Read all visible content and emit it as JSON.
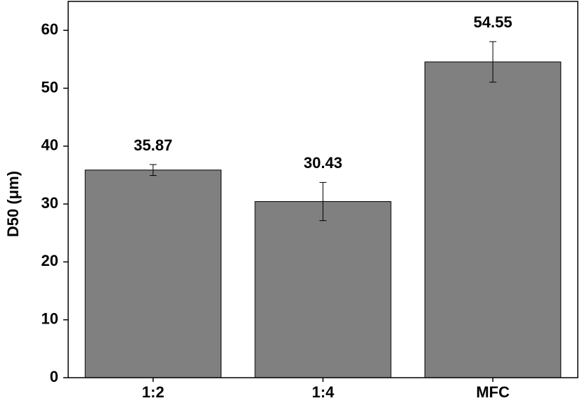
{
  "chart_data": {
    "type": "bar",
    "y_label": "D50 (μm)",
    "categories": [
      "1:2",
      "1:4",
      "MFC"
    ],
    "values": [
      35.87,
      30.43,
      54.55
    ],
    "errors": [
      0.95,
      3.3,
      3.5
    ],
    "color": "#808080",
    "ylim": [
      0,
      65
    ],
    "yticks": [
      0,
      10,
      20,
      30,
      40,
      50,
      60
    ],
    "grid": false
  }
}
